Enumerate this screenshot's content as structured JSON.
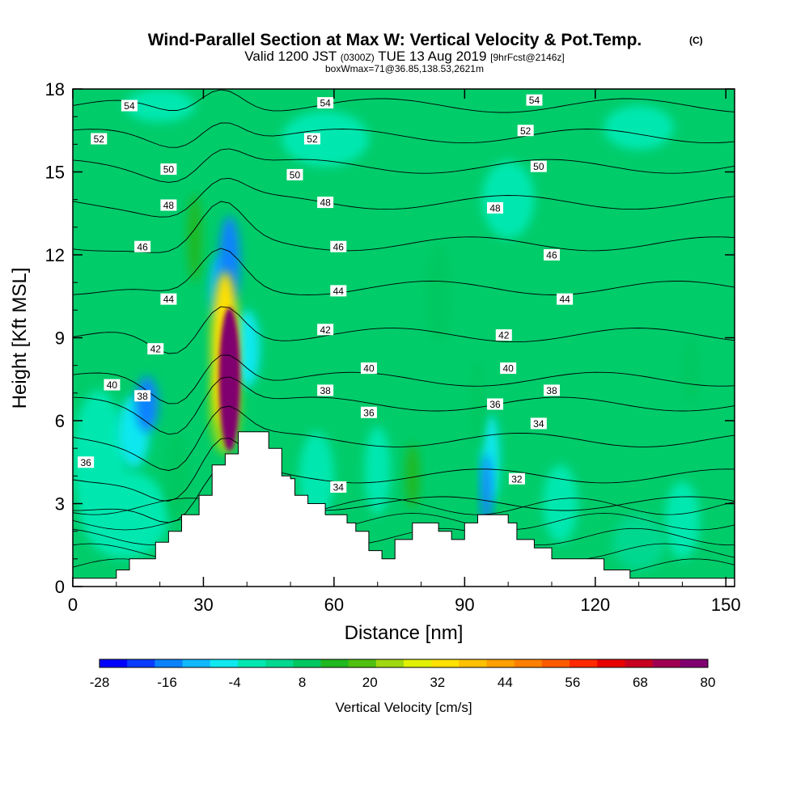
{
  "title": {
    "main": "Wind-Parallel Section at Max W: Vertical Velocity & Pot.Temp.",
    "main_tag": "(C)",
    "valid_prefix": "Valid 1200 JST",
    "valid_z": "(0300Z)",
    "valid_date": "TUE 13 Aug 2019",
    "valid_fcst": "[9hrFcst@2146z]",
    "box": "boxWmax=71@36.85,138.53,2621m"
  },
  "chart_data": {
    "type": "heatmap",
    "xlabel": "Distance [nm]",
    "ylabel": "Height [Kft MSL]",
    "xlim": [
      0,
      152
    ],
    "ylim": [
      0,
      18
    ],
    "xticks": [
      0,
      30,
      60,
      90,
      120,
      150
    ],
    "yticks": [
      0,
      3,
      6,
      9,
      12,
      15,
      18
    ],
    "colorbar": {
      "label": "Vertical Velocity [cm/s]",
      "ticks": [
        "-28",
        "-16",
        "-4",
        "8",
        "20",
        "32",
        "44",
        "56",
        "68",
        "80"
      ],
      "colors": [
        "#0000ff",
        "#0a3cff",
        "#0a82ff",
        "#10b8ff",
        "#10e8f0",
        "#00e8b0",
        "#00d890",
        "#00c860",
        "#20b820",
        "#50c010",
        "#a0d810",
        "#e0f000",
        "#ffe000",
        "#ffc000",
        "#ffa000",
        "#ff8000",
        "#ff5a00",
        "#ff2800",
        "#e80000",
        "#c80020",
        "#a00050",
        "#800070"
      ]
    },
    "terrain": [
      [
        0,
        0.3
      ],
      [
        10,
        0.3
      ],
      [
        10,
        0.6
      ],
      [
        13,
        0.6
      ],
      [
        13,
        1.0
      ],
      [
        19,
        1.0
      ],
      [
        19,
        1.6
      ],
      [
        22,
        1.6
      ],
      [
        22,
        2.0
      ],
      [
        25,
        2.0
      ],
      [
        25,
        2.6
      ],
      [
        29,
        2.6
      ],
      [
        29,
        3.3
      ],
      [
        32,
        3.3
      ],
      [
        32,
        4.4
      ],
      [
        35,
        4.4
      ],
      [
        35,
        4.8
      ],
      [
        38,
        4.8
      ],
      [
        38,
        5.6
      ],
      [
        45,
        5.6
      ],
      [
        45,
        5.0
      ],
      [
        48,
        5.0
      ],
      [
        48,
        4.0
      ],
      [
        50,
        4.0
      ],
      [
        50,
        3.9
      ],
      [
        51,
        3.9
      ],
      [
        51,
        3.3
      ],
      [
        54,
        3.3
      ],
      [
        54,
        3.0
      ],
      [
        58,
        3.0
      ],
      [
        58,
        2.6
      ],
      [
        63,
        2.6
      ],
      [
        63,
        2.3
      ],
      [
        65,
        2.3
      ],
      [
        65,
        2.0
      ],
      [
        68,
        2.0
      ],
      [
        68,
        1.3
      ],
      [
        71,
        1.3
      ],
      [
        71,
        1.0
      ],
      [
        74,
        1.0
      ],
      [
        74,
        1.7
      ],
      [
        78,
        1.7
      ],
      [
        78,
        2.3
      ],
      [
        84,
        2.3
      ],
      [
        84,
        2.0
      ],
      [
        87,
        2.0
      ],
      [
        87,
        1.7
      ],
      [
        90,
        1.7
      ],
      [
        90,
        2.3
      ],
      [
        93,
        2.3
      ],
      [
        93,
        2.6
      ],
      [
        100,
        2.6
      ],
      [
        100,
        2.3
      ],
      [
        102,
        2.3
      ],
      [
        102,
        1.7
      ],
      [
        106,
        1.7
      ],
      [
        106,
        1.4
      ],
      [
        110,
        1.4
      ],
      [
        110,
        1.0
      ],
      [
        116,
        1.0
      ],
      [
        116,
        1.0
      ],
      [
        122,
        1.0
      ],
      [
        122,
        0.6
      ],
      [
        128,
        0.6
      ],
      [
        128,
        0.3
      ],
      [
        152,
        0.3
      ]
    ],
    "velocity_cells": [
      {
        "x": 36,
        "y": 7.5,
        "rx": 2.4,
        "ry": 2.6,
        "w": 80
      },
      {
        "x": 36,
        "y": 7.8,
        "rx": 1.6,
        "ry": 1.6,
        "w": 60
      },
      {
        "x": 35,
        "y": 8.6,
        "rx": 3.2,
        "ry": 2.8,
        "w": 32
      },
      {
        "x": 35,
        "y": 6.4,
        "rx": 3.4,
        "ry": 1.6,
        "w": 24
      },
      {
        "x": 36,
        "y": 11.8,
        "rx": 2.4,
        "ry": 1.6,
        "w": -20
      },
      {
        "x": 34,
        "y": 10.8,
        "rx": 2.6,
        "ry": 1.2,
        "w": -12
      },
      {
        "x": 17,
        "y": 6.6,
        "rx": 2.6,
        "ry": 1.0,
        "w": -16
      },
      {
        "x": 14,
        "y": 5.6,
        "rx": 3.6,
        "ry": 1.3,
        "w": -8
      },
      {
        "x": 40,
        "y": 8.6,
        "rx": 3.0,
        "ry": 1.4,
        "w": -8
      },
      {
        "x": 95,
        "y": 3.4,
        "rx": 1.2,
        "ry": 1.4,
        "w": -16
      },
      {
        "x": 96,
        "y": 4.6,
        "rx": 2.0,
        "ry": 1.6,
        "w": -6
      },
      {
        "x": 78,
        "y": 4.0,
        "rx": 1.6,
        "ry": 1.2,
        "w": 14
      },
      {
        "x": 56,
        "y": 4.0,
        "rx": 4.0,
        "ry": 1.6,
        "w": -4
      },
      {
        "x": 70,
        "y": 4.2,
        "rx": 3.0,
        "ry": 1.6,
        "w": -4
      },
      {
        "x": 6,
        "y": 4.6,
        "rx": 6.0,
        "ry": 2.5,
        "w": -4
      },
      {
        "x": 12,
        "y": 2.6,
        "rx": 10.0,
        "ry": 1.6,
        "w": -4
      },
      {
        "x": 140,
        "y": 2.4,
        "rx": 4.0,
        "ry": 1.4,
        "w": -4
      },
      {
        "x": 112,
        "y": 3.0,
        "rx": 4.0,
        "ry": 1.4,
        "w": -4
      },
      {
        "x": 130,
        "y": 1.6,
        "rx": 6.0,
        "ry": 1.0,
        "w": 4
      },
      {
        "x": 24,
        "y": 4.0,
        "rx": 3.0,
        "ry": 1.6,
        "w": 8
      },
      {
        "x": 28,
        "y": 12.6,
        "rx": 1.6,
        "ry": 1.6,
        "w": 12
      },
      {
        "x": 93,
        "y": 6.6,
        "rx": 1.6,
        "ry": 1.6,
        "w": 8
      },
      {
        "x": 84,
        "y": 10.6,
        "rx": 3.0,
        "ry": 1.8,
        "w": 6
      },
      {
        "x": 142,
        "y": 7.8,
        "rx": 2.0,
        "ry": 1.2,
        "w": 8
      },
      {
        "x": 58,
        "y": 16.2,
        "rx": 10.0,
        "ry": 1.0,
        "w": -4
      },
      {
        "x": 100,
        "y": 14.0,
        "rx": 6.0,
        "ry": 1.4,
        "w": -4
      },
      {
        "x": 130,
        "y": 16.6,
        "rx": 8.0,
        "ry": 0.8,
        "w": -4
      },
      {
        "x": 20,
        "y": 17.4,
        "rx": 8.0,
        "ry": 0.6,
        "w": -4
      }
    ],
    "theta_contours": [
      {
        "level": "54",
        "y0": 17.4,
        "labels": [
          [
            13,
            17.4
          ],
          [
            58,
            17.5
          ],
          [
            106,
            17.6
          ]
        ]
      },
      {
        "level": "52",
        "y0": 16.3,
        "labels": [
          [
            6,
            16.2
          ],
          [
            55,
            16.2
          ],
          [
            104,
            16.5
          ]
        ]
      },
      {
        "level": "50",
        "y0": 15.2,
        "labels": [
          [
            22,
            15.1
          ],
          [
            51,
            14.9
          ],
          [
            107,
            15.2
          ]
        ]
      },
      {
        "level": "48",
        "y0": 13.9,
        "labels": [
          [
            22,
            13.8
          ],
          [
            58,
            13.9
          ],
          [
            97,
            13.7
          ]
        ]
      },
      {
        "level": "46",
        "y0": 12.4,
        "labels": [
          [
            16,
            12.3
          ],
          [
            61,
            12.3
          ],
          [
            110,
            12.0
          ]
        ]
      },
      {
        "level": "44",
        "y0": 10.8,
        "labels": [
          [
            22,
            10.4
          ],
          [
            61,
            10.7
          ],
          [
            113,
            10.4
          ]
        ]
      },
      {
        "level": "42",
        "y0": 9.1,
        "labels": [
          [
            19,
            8.6
          ],
          [
            58,
            9.3
          ],
          [
            99,
            9.1
          ]
        ]
      },
      {
        "level": "40",
        "y0": 7.5,
        "labels": [
          [
            9,
            7.3
          ],
          [
            68,
            7.9
          ],
          [
            100,
            7.9
          ]
        ]
      },
      {
        "level": "38",
        "y0": 6.6,
        "labels": [
          [
            16,
            6.9
          ],
          [
            58,
            7.1
          ],
          [
            110,
            7.1
          ]
        ]
      },
      {
        "level": "36",
        "y0": 5.3,
        "labels": [
          [
            3,
            4.5
          ],
          [
            68,
            6.3
          ],
          [
            97,
            6.6
          ]
        ]
      },
      {
        "level": "34",
        "y0": 4.0,
        "labels": [
          [
            61,
            3.6
          ],
          [
            107,
            5.9
          ]
        ]
      },
      {
        "level": "32",
        "y0": 3.0,
        "labels": [
          [
            102,
            3.9
          ]
        ]
      }
    ]
  }
}
